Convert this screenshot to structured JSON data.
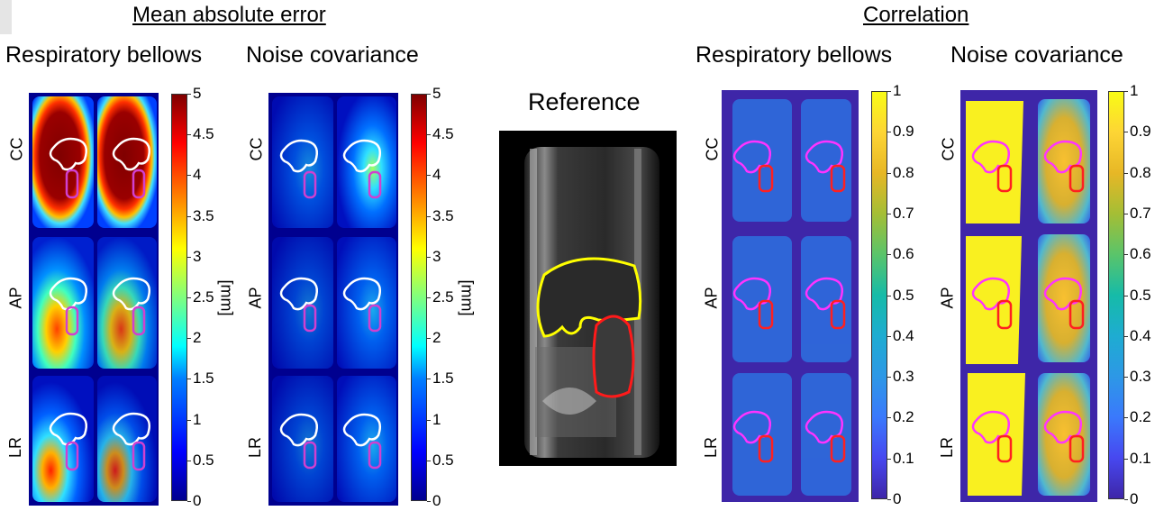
{
  "headers": {
    "mae": "Mean absolute error",
    "corr": "Correlation",
    "reference": "Reference"
  },
  "subheaders": {
    "mae_resp": "Respiratory bellows",
    "mae_noise": "Noise covariance",
    "corr_resp": "Respiratory bellows",
    "corr_noise": "Noise covariance"
  },
  "row_labels": {
    "cc": "CC",
    "ap": "AP",
    "lr": "LR"
  },
  "mae_colorbar": {
    "colormap": "jet",
    "unit": "[mm]",
    "ticks": [
      "5",
      "4.5",
      "4",
      "3.5",
      "3",
      "2.5",
      "2",
      "1.5",
      "1",
      "0.5",
      "0"
    ]
  },
  "corr_colorbar": {
    "colormap": "parula",
    "ticks": [
      "1",
      "0.9",
      "0.8",
      "0.7",
      "0.6",
      "0.5",
      "0.4",
      "0.3",
      "0.2",
      "0.1",
      "0"
    ]
  },
  "colors": {
    "liver_contour_maps": "#ffffff",
    "kidney_contour_maps": "#cc33cc",
    "liver_contour_reference": "#ffff00",
    "kidney_contour_reference": "#ff1a1a",
    "liver_contour_corr": "#ff33ff",
    "kidney_contour_corr": "#ff2020"
  }
}
